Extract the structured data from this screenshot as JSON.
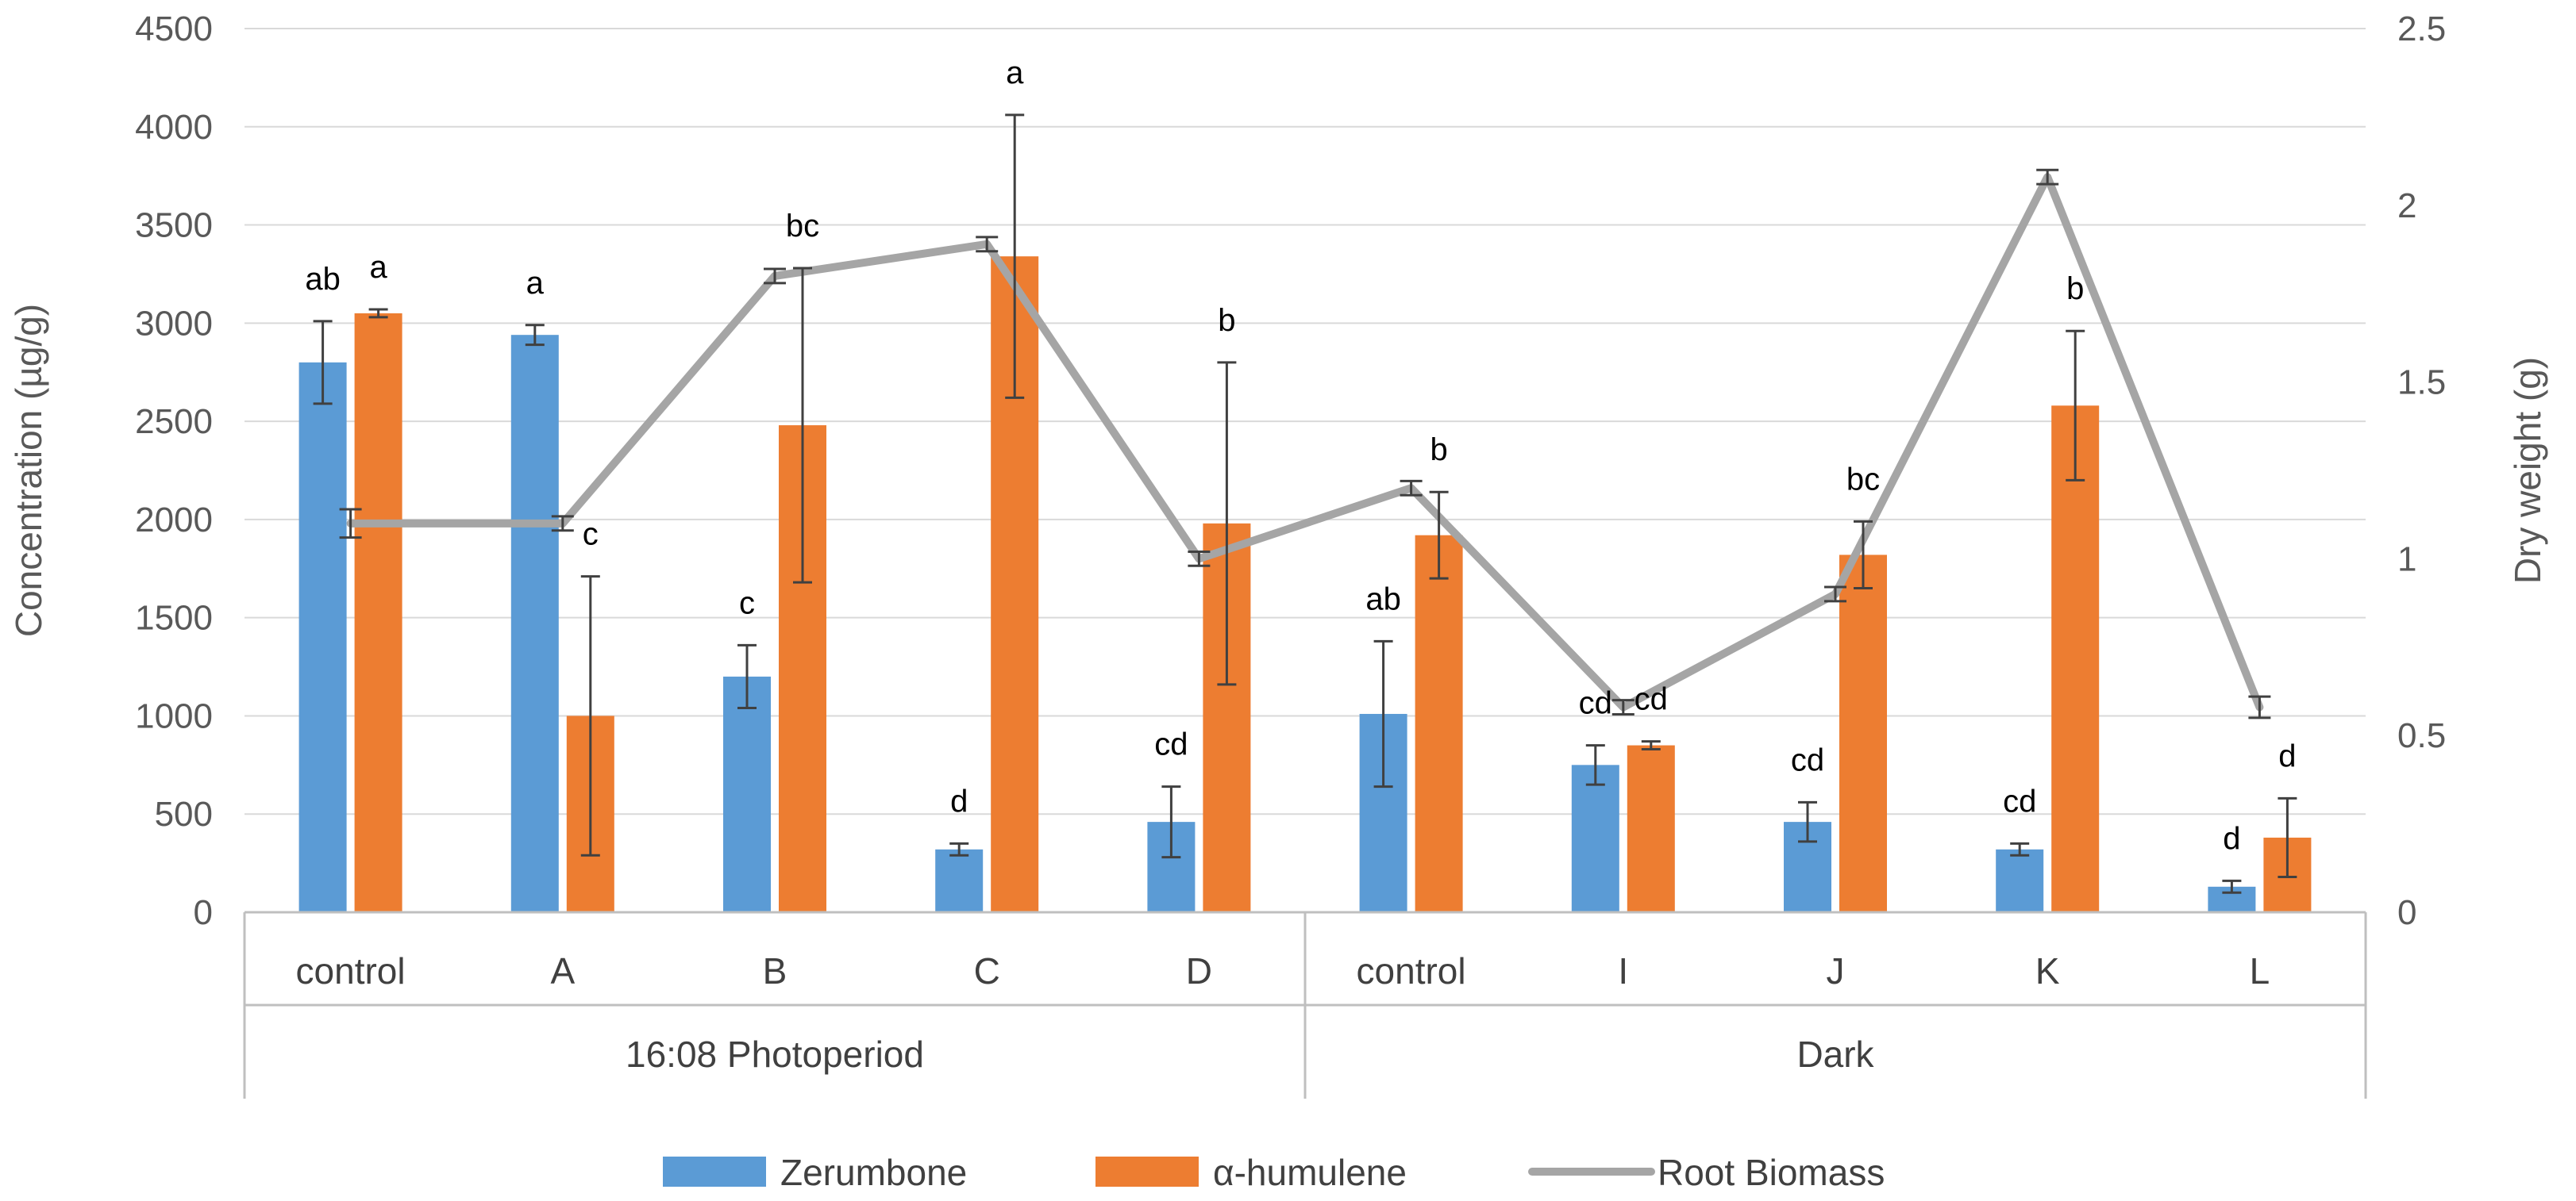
{
  "chart_data": {
    "type": "bar",
    "title": "",
    "ylabel": "Concentration (µg/g)",
    "y2label": "Dry weight (g)",
    "ylim": [
      0,
      4500
    ],
    "y2lim": [
      0,
      2.5
    ],
    "yticks": [
      "0",
      "500",
      "1000",
      "1500",
      "2000",
      "2500",
      "3000",
      "3500",
      "4000",
      "4500"
    ],
    "y2ticks": [
      "0",
      "0.5",
      "1",
      "1.5",
      "2",
      "2.5"
    ],
    "categories": [
      "control",
      "A",
      "B",
      "C",
      "D",
      "control",
      "I",
      "J",
      "K",
      "L"
    ],
    "groups": [
      {
        "label": "16:08  Photoperiod",
        "start": 0,
        "end": 4
      },
      {
        "label": "Dark",
        "start": 5,
        "end": 9
      }
    ],
    "series": [
      {
        "name": "Zerumbone",
        "kind": "bar",
        "color": "#5b9bd5",
        "values": [
          2800,
          2940,
          1200,
          320,
          460,
          1010,
          750,
          460,
          320,
          130
        ],
        "errors": [
          210,
          50,
          160,
          30,
          180,
          370,
          100,
          100,
          30,
          30
        ],
        "labels": [
          "ab",
          "a",
          "c",
          "d",
          "cd",
          "ab",
          "cd",
          "cd",
          "cd",
          "d"
        ]
      },
      {
        "name": "α-humulene",
        "kind": "bar",
        "color": "#ed7d31",
        "values": [
          3050,
          1000,
          2480,
          3340,
          1980,
          1920,
          850,
          1820,
          2580,
          380
        ],
        "errors": [
          20,
          710,
          800,
          720,
          820,
          220,
          20,
          170,
          380,
          200
        ],
        "labels": [
          "a",
          "c",
          "bc",
          "a",
          "b",
          "b",
          "cd",
          "bc",
          "b",
          "d"
        ]
      },
      {
        "name": "Root Biomass",
        "kind": "line",
        "axis": "right",
        "color": "#a5a5a5",
        "values": [
          1.1,
          1.1,
          1.8,
          1.89,
          1.0,
          1.2,
          0.58,
          0.9,
          2.08,
          0.58
        ],
        "errors": [
          0.04,
          0.02,
          0.02,
          0.02,
          0.02,
          0.02,
          0.02,
          0.02,
          0.02,
          0.03
        ]
      }
    ],
    "legend": {
      "position": "bottom"
    }
  }
}
